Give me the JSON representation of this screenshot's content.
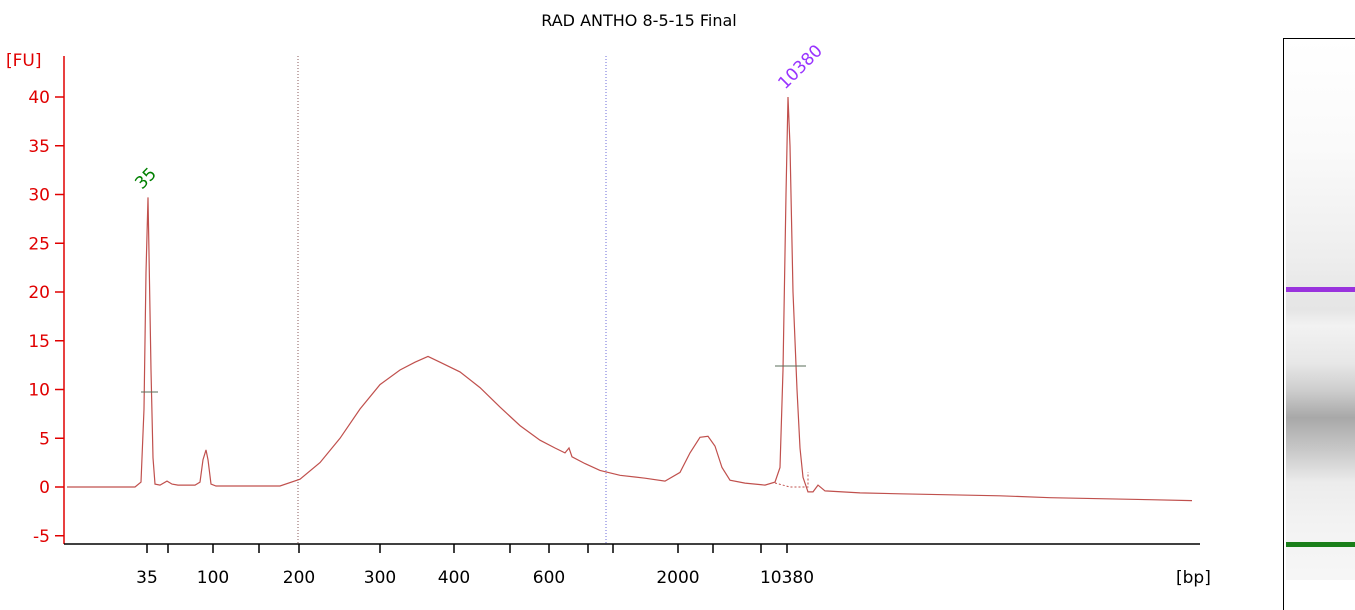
{
  "chart_data": {
    "type": "line",
    "title": "RAD ANTHO 8-5-15 Final",
    "ylabel": "[FU]",
    "xlabel": "[bp]",
    "ylim": [
      -6,
      44
    ],
    "yticks": [
      -5,
      0,
      5,
      10,
      15,
      20,
      25,
      30,
      35,
      40
    ],
    "xticks": [
      "35",
      "",
      "100",
      "",
      "200",
      "300",
      "400",
      "",
      "600",
      "",
      "",
      "2000",
      "",
      "",
      "10380"
    ],
    "grid": false,
    "series": [
      {
        "color": "#c0504d",
        "points": [
          [
            67,
            0
          ],
          [
            100,
            0
          ],
          [
            135,
            0
          ],
          [
            141,
            0.5
          ],
          [
            144,
            8
          ],
          [
            146,
            22
          ],
          [
            148,
            29.7
          ],
          [
            149,
            24
          ],
          [
            151,
            12
          ],
          [
            153,
            3
          ],
          [
            155,
            0.3
          ],
          [
            160,
            0.2
          ],
          [
            167,
            0.6
          ],
          [
            172,
            0.3
          ],
          [
            178,
            0.2
          ],
          [
            195,
            0.2
          ],
          [
            200,
            0.5
          ],
          [
            203,
            2.8
          ],
          [
            206,
            3.8
          ],
          [
            208,
            2.8
          ],
          [
            211,
            0.3
          ],
          [
            216,
            0.1
          ],
          [
            240,
            0.1
          ],
          [
            280,
            0.1
          ],
          [
            300,
            0.8
          ],
          [
            320,
            2.5
          ],
          [
            340,
            5
          ],
          [
            360,
            8
          ],
          [
            380,
            10.5
          ],
          [
            400,
            12
          ],
          [
            415,
            12.8
          ],
          [
            428,
            13.4
          ],
          [
            440,
            12.8
          ],
          [
            460,
            11.8
          ],
          [
            480,
            10.2
          ],
          [
            500,
            8.2
          ],
          [
            520,
            6.3
          ],
          [
            540,
            4.8
          ],
          [
            555,
            4
          ],
          [
            565,
            3.5
          ],
          [
            569,
            4
          ],
          [
            572,
            3.1
          ],
          [
            585,
            2.4
          ],
          [
            600,
            1.7
          ],
          [
            620,
            1.2
          ],
          [
            645,
            0.9
          ],
          [
            665,
            0.6
          ],
          [
            680,
            1.5
          ],
          [
            690,
            3.5
          ],
          [
            700,
            5.1
          ],
          [
            708,
            5.2
          ],
          [
            715,
            4.2
          ],
          [
            722,
            2
          ],
          [
            730,
            0.7
          ],
          [
            745,
            0.4
          ],
          [
            765,
            0.2
          ],
          [
            775,
            0.5
          ],
          [
            780,
            2
          ],
          [
            783,
            12
          ],
          [
            786,
            30
          ],
          [
            788,
            40
          ],
          [
            790,
            35
          ],
          [
            793,
            20
          ],
          [
            797,
            10
          ],
          [
            800,
            4
          ],
          [
            803,
            1
          ],
          [
            808,
            -0.5
          ],
          [
            813,
            -0.5
          ],
          [
            818,
            0.2
          ],
          [
            825,
            -0.4
          ],
          [
            860,
            -0.6
          ],
          [
            900,
            -0.7
          ],
          [
            950,
            -0.8
          ],
          [
            1000,
            -0.9
          ],
          [
            1050,
            -1.1
          ],
          [
            1100,
            -1.2
          ],
          [
            1150,
            -1.3
          ],
          [
            1192,
            -1.4
          ]
        ]
      }
    ],
    "peak_labels": [
      {
        "text": "35",
        "color": "#008000"
      },
      {
        "text": "10380",
        "color": "#9933ff"
      }
    ]
  },
  "gel": {
    "upper_marker_color": "#9933dd",
    "lower_marker_color": "#1a7f1a"
  }
}
